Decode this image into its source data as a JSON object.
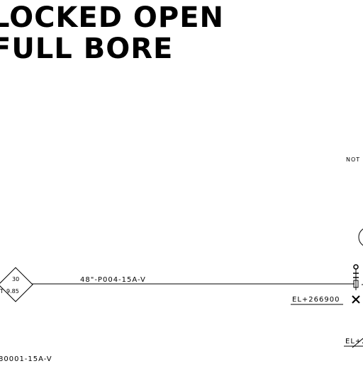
{
  "notes": {
    "line1": "LOCKED OPEN",
    "line2": "FULL BORE"
  },
  "tag": {
    "top": "30",
    "bottom": "9.85",
    "left_partial": "T"
  },
  "lines": {
    "main_line": "48\"-P004-15A-V",
    "lower_line": "80001-15A-V"
  },
  "elevations": {
    "el1": "EL+266900",
    "el2": "EL+2"
  },
  "note_label": "NOT"
}
